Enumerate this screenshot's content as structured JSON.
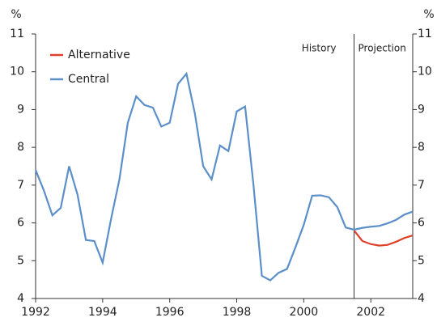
{
  "chart_data": {
    "type": "line",
    "y_label": "%",
    "y2_label": "%",
    "annotations": [
      "History",
      "Projection"
    ],
    "vline": 2001.5,
    "legend": "upper left",
    "xlim": [
      1992,
      2003.25
    ],
    "xticks": [
      1992,
      1994,
      1996,
      1998,
      2000,
      2002
    ],
    "ylim": [
      4,
      11
    ],
    "yticks": [
      4,
      5,
      6,
      7,
      8,
      9,
      10,
      11
    ],
    "y2lim": [
      4,
      11
    ],
    "y2ticks": [
      4,
      5,
      6,
      7,
      8,
      9,
      10,
      11
    ],
    "series": [
      {
        "name": "Alternative",
        "color": "#e0402a",
        "x": [
          2001.5,
          2001.75,
          2002,
          2002.25,
          2002.5,
          2002.75,
          2003,
          2003.25
        ],
        "values": [
          5.8,
          5.52,
          5.44,
          5.4,
          5.42,
          5.5,
          5.6,
          5.67
        ]
      },
      {
        "name": "Central",
        "color": "#5b8fc9",
        "x": [
          1992,
          1992.25,
          1992.5,
          1992.75,
          1993,
          1993.25,
          1993.5,
          1993.75,
          1994,
          1994.25,
          1994.5,
          1994.75,
          1995,
          1995.25,
          1995.5,
          1995.75,
          1996,
          1996.25,
          1996.5,
          1996.75,
          1997,
          1997.25,
          1997.5,
          1997.75,
          1998,
          1998.25,
          1998.5,
          1998.75,
          1999,
          1999.25,
          1999.5,
          1999.75,
          2000,
          2000.25,
          2000.5,
          2000.75,
          2001,
          2001.25,
          2001.5,
          2001.75,
          2002,
          2002.25,
          2002.5,
          2002.75,
          2003,
          2003.25
        ],
        "values": [
          7.4,
          6.85,
          6.2,
          6.4,
          7.5,
          6.75,
          5.55,
          5.52,
          4.95,
          6.1,
          7.15,
          8.65,
          9.35,
          9.12,
          9.05,
          8.55,
          8.65,
          9.68,
          9.95,
          8.9,
          7.5,
          7.15,
          8.05,
          7.9,
          8.95,
          9.08,
          7.0,
          4.6,
          4.48,
          4.68,
          4.78,
          5.35,
          5.95,
          6.72,
          6.73,
          6.68,
          6.42,
          5.88,
          5.82,
          5.87,
          5.9,
          5.92,
          5.99,
          6.08,
          6.22,
          6.3
        ]
      }
    ]
  }
}
